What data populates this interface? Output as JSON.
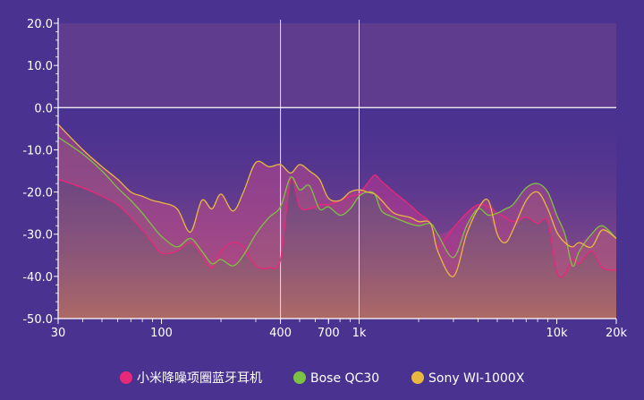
{
  "chart_data": {
    "type": "area",
    "title": "",
    "xlabel": "",
    "ylabel": "",
    "xscale": "log",
    "xlim": [
      30,
      20000
    ],
    "ylim": [
      -50,
      20
    ],
    "grid": "vertical lines at 400 and 1k; horizontal line at 0.0",
    "legend_position": "bottom",
    "y_ticks": [
      {
        "value": 20,
        "label": "20.0"
      },
      {
        "value": 10,
        "label": "10.0"
      },
      {
        "value": 0,
        "label": "0.0"
      },
      {
        "value": -10,
        "label": "-10.0"
      },
      {
        "value": -20,
        "label": "-20.0"
      },
      {
        "value": -30,
        "label": "-30.0"
      },
      {
        "value": -40,
        "label": "-40.0"
      },
      {
        "value": -50,
        "label": "-50.0"
      }
    ],
    "x_ticks": [
      {
        "value": 30,
        "label": "30"
      },
      {
        "value": 100,
        "label": "100"
      },
      {
        "value": 400,
        "label": "400"
      },
      {
        "value": 700,
        "label": "700"
      },
      {
        "value": 1000,
        "label": "1k"
      },
      {
        "value": 10000,
        "label": "10k"
      },
      {
        "value": 20000,
        "label": "20k"
      }
    ],
    "series": [
      {
        "name": "小米降噪项圈蓝牙耳机",
        "color": "#e8287a",
        "x": [
          30,
          40,
          50,
          60,
          70,
          80,
          90,
          100,
          120,
          140,
          160,
          180,
          200,
          230,
          260,
          300,
          350,
          400,
          450,
          500,
          560,
          630,
          700,
          800,
          900,
          1000,
          1100,
          1200,
          1300,
          1500,
          1800,
          2000,
          2300,
          2500,
          3000,
          3500,
          4000,
          4500,
          5000,
          5500,
          6000,
          7000,
          8000,
          9000,
          10000,
          11000,
          12000,
          13000,
          15000,
          17000,
          20000
        ],
        "y": [
          -17,
          -19,
          -21,
          -23,
          -26,
          -29,
          -32,
          -34.5,
          -34,
          -32,
          -35,
          -38,
          -34,
          -32,
          -33,
          -37.5,
          -38,
          -36,
          -17,
          -23.5,
          -24,
          -23,
          -23,
          -22,
          -21,
          -20.5,
          -18,
          -16,
          -17.5,
          -20,
          -23,
          -25,
          -27.5,
          -33,
          -28.5,
          -25,
          -23,
          -23.5,
          -25,
          -26,
          -27,
          -26,
          -27.5,
          -27,
          -39,
          -39.5,
          -36,
          -37,
          -34,
          -38,
          -38.5
        ]
      },
      {
        "name": "Bose QC30",
        "color": "#7cc242",
        "x": [
          30,
          40,
          50,
          60,
          70,
          80,
          90,
          100,
          120,
          140,
          160,
          180,
          200,
          230,
          260,
          300,
          350,
          400,
          450,
          500,
          560,
          630,
          700,
          800,
          900,
          1000,
          1100,
          1200,
          1300,
          1500,
          1800,
          2000,
          2300,
          2500,
          3000,
          3500,
          4000,
          4500,
          5000,
          5500,
          6000,
          7000,
          8000,
          9000,
          10000,
          11000,
          12000,
          13000,
          15000,
          17000,
          20000
        ],
        "y": [
          -7,
          -11,
          -15,
          -19,
          -22,
          -25,
          -28,
          -30.5,
          -33,
          -31,
          -34,
          -37,
          -36,
          -37.5,
          -35,
          -30,
          -26,
          -23.5,
          -16.5,
          -19.5,
          -18.5,
          -24,
          -23.5,
          -25.5,
          -24,
          -21,
          -20,
          -20.5,
          -24.5,
          -26,
          -27.5,
          -28,
          -27.5,
          -30,
          -35.5,
          -28,
          -24,
          -25.5,
          -25,
          -24,
          -23,
          -19,
          -18,
          -20,
          -25.5,
          -30,
          -37.5,
          -34,
          -30,
          -28,
          -31
        ]
      },
      {
        "name": "Sony WI-1000X",
        "color": "#e8b840",
        "x": [
          30,
          40,
          50,
          60,
          70,
          80,
          90,
          100,
          120,
          140,
          160,
          180,
          200,
          230,
          260,
          300,
          350,
          400,
          450,
          500,
          560,
          630,
          700,
          800,
          900,
          1000,
          1100,
          1200,
          1300,
          1500,
          1800,
          2000,
          2300,
          2500,
          3000,
          3500,
          4000,
          4500,
          5000,
          5500,
          6000,
          7000,
          8000,
          9000,
          10000,
          11000,
          12000,
          13000,
          15000,
          17000,
          20000
        ],
        "y": [
          -4,
          -10,
          -14,
          -17,
          -20,
          -21,
          -22,
          -22.5,
          -24,
          -29.5,
          -22,
          -24,
          -20.5,
          -24.5,
          -20,
          -13,
          -14,
          -13.5,
          -15.5,
          -13.5,
          -15,
          -17,
          -21.5,
          -22,
          -20,
          -19.5,
          -20,
          -20.5,
          -22,
          -25,
          -26,
          -27,
          -27.5,
          -34,
          -40,
          -30,
          -24,
          -22,
          -30,
          -32,
          -29,
          -22,
          -20,
          -24,
          -29.5,
          -32,
          -33,
          -32,
          -33,
          -29,
          -31
        ]
      }
    ]
  }
}
